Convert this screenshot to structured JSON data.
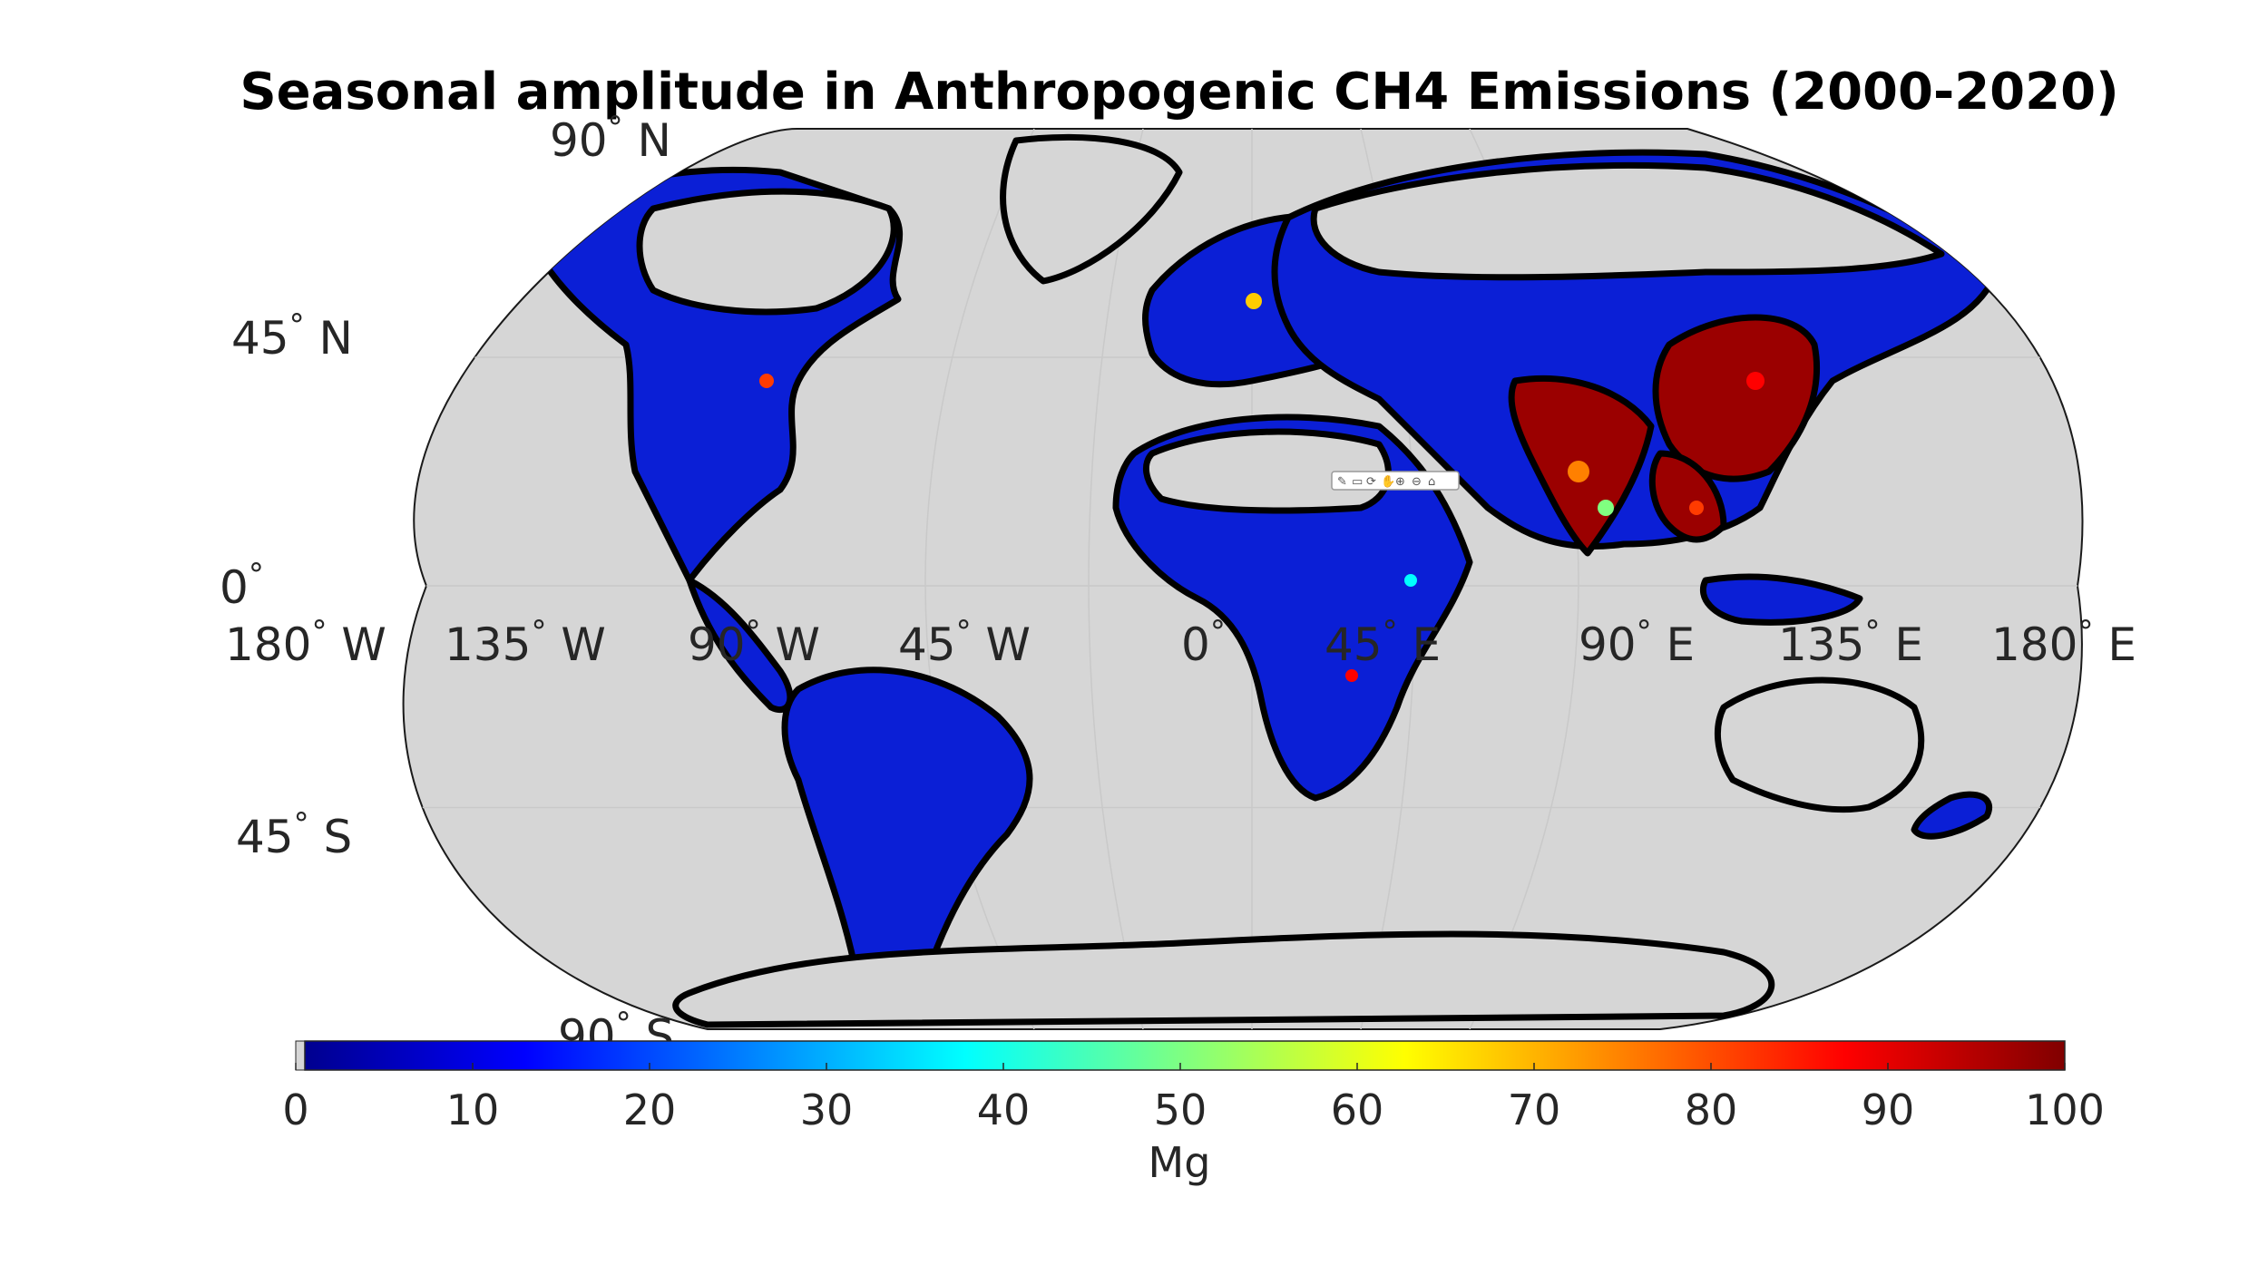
{
  "chart_data": {
    "type": "heatmap",
    "title": "Seasonal amplitude in Anthropogenic CH4 Emissions (2000-2020)",
    "projection": "Robinson (global map)",
    "latitude_labels": [
      {
        "deg": "90",
        "hemi": "N"
      },
      {
        "deg": "45",
        "hemi": "N"
      },
      {
        "deg": "0",
        "hemi": ""
      },
      {
        "deg": "45",
        "hemi": "S"
      },
      {
        "deg": "90",
        "hemi": "S"
      }
    ],
    "longitude_labels": [
      {
        "deg": "180",
        "hemi": "W"
      },
      {
        "deg": "135",
        "hemi": "W"
      },
      {
        "deg": "90",
        "hemi": "W"
      },
      {
        "deg": "45",
        "hemi": "W"
      },
      {
        "deg": "0",
        "hemi": ""
      },
      {
        "deg": "45",
        "hemi": "E"
      },
      {
        "deg": "90",
        "hemi": "E"
      },
      {
        "deg": "135",
        "hemi": "E"
      },
      {
        "deg": "180",
        "hemi": "E"
      }
    ],
    "degree_symbol": "°",
    "colorbar": {
      "label": "Mg",
      "range": [
        0,
        100
      ],
      "ticks": [
        "0",
        "10",
        "20",
        "30",
        "40",
        "50",
        "60",
        "70",
        "80",
        "90",
        "100"
      ],
      "colormap": "jet",
      "stops": [
        "#00008f",
        "#0000ff",
        "#0080ff",
        "#00ffff",
        "#80ff80",
        "#ffff00",
        "#ff8000",
        "#ff0000",
        "#800000"
      ]
    },
    "background_color": "#d6d6d6",
    "nodata_color": "#d6d6d6",
    "grid": true
  }
}
